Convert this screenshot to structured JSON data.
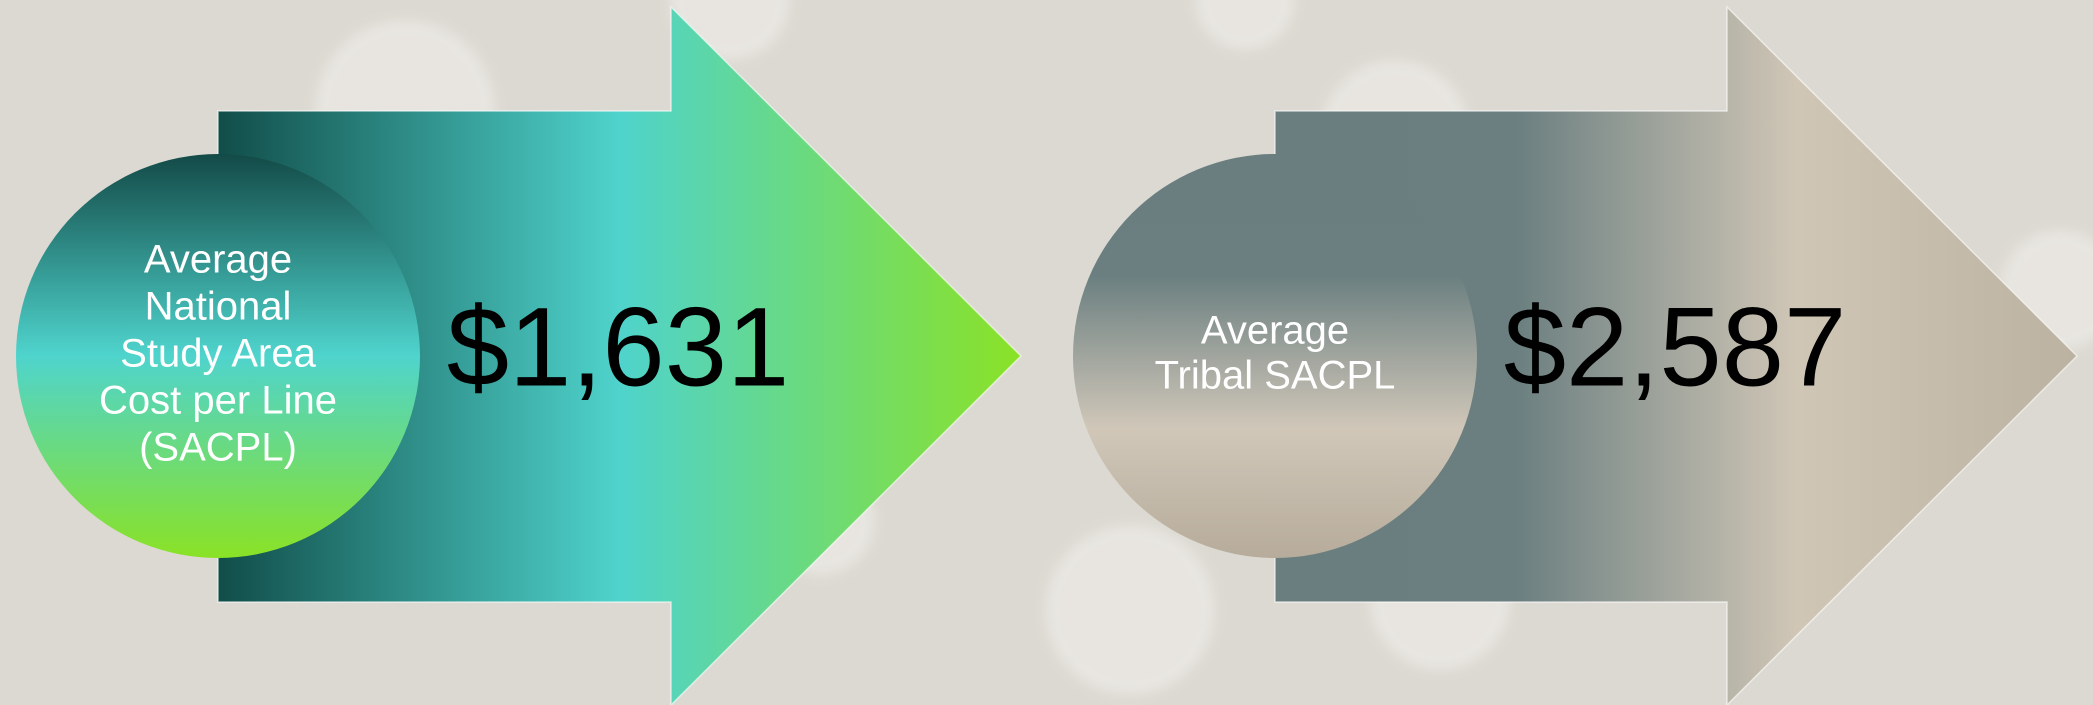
{
  "items": [
    {
      "label": [
        "Average",
        "National",
        "Study Area",
        "Cost per Line",
        "(SACPL)"
      ],
      "value": "$1,631"
    },
    {
      "label": [
        "Average",
        "Tribal SACPL"
      ],
      "value": "$2,587"
    }
  ]
}
